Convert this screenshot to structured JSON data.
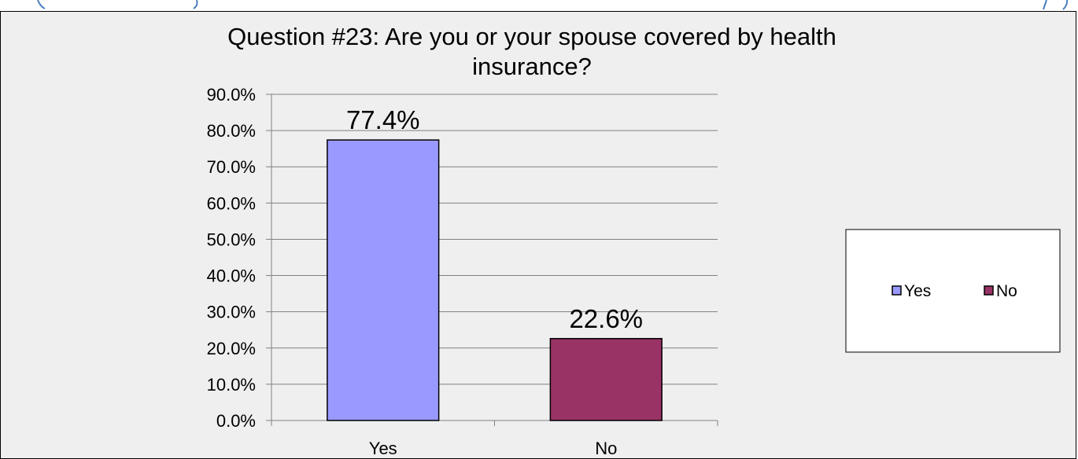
{
  "colors": {
    "background": "#efefef",
    "gridline": "#808080",
    "yes_bar": "#9999ff",
    "no_bar": "#993366",
    "page_top_text": "#4a7ebf"
  },
  "chart_data": {
    "type": "bar",
    "title_line1": "Question  #23:  Are you or your spouse covered by health",
    "title_line2": "insurance?",
    "categories": [
      "Yes",
      "No"
    ],
    "values": [
      77.4,
      22.6
    ],
    "data_labels": [
      "77.4%",
      "22.6%"
    ],
    "ylim": [
      0,
      90
    ],
    "yticks": [
      0,
      10,
      20,
      30,
      40,
      50,
      60,
      70,
      80,
      90
    ],
    "ytick_labels": [
      "0.0%",
      "10.0%",
      "20.0%",
      "30.0%",
      "40.0%",
      "50.0%",
      "60.0%",
      "70.0%",
      "80.0%",
      "90.0%"
    ],
    "grid": true,
    "legend_position": "right",
    "legend": [
      {
        "label": "Yes",
        "color": "#9999ff"
      },
      {
        "label": "No",
        "color": "#993366"
      }
    ]
  }
}
